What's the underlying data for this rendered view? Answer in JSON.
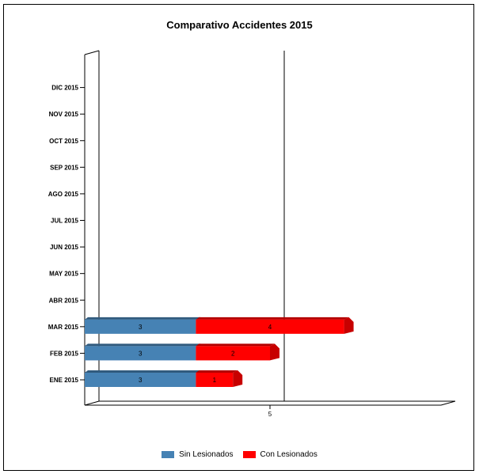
{
  "chart_data": {
    "type": "bar",
    "orientation": "horizontal",
    "stacked": true,
    "title": "Comparativo Accidentes 2015",
    "xlabel": "",
    "ylabel": "",
    "categories": [
      "ENE 2015",
      "FEB 2015",
      "MAR 2015",
      "ABR 2015",
      "MAY 2015",
      "JUN 2015",
      "JUL 2015",
      "AGO 2015",
      "SEP 2015",
      "OCT 2015",
      "NOV 2015",
      "DIC 2015"
    ],
    "series": [
      {
        "name": "Sin Lesionados",
        "color": "#4682b4",
        "values": [
          3,
          3,
          3,
          null,
          null,
          null,
          null,
          null,
          null,
          null,
          null,
          null
        ]
      },
      {
        "name": "Con Lesionados",
        "color": "#ff0000",
        "values": [
          1,
          2,
          4,
          null,
          null,
          null,
          null,
          null,
          null,
          null,
          null,
          null
        ]
      }
    ],
    "xlim": [
      0,
      10
    ],
    "x_ticks": [
      "5"
    ],
    "grid": true,
    "legend_position": "bottom"
  }
}
